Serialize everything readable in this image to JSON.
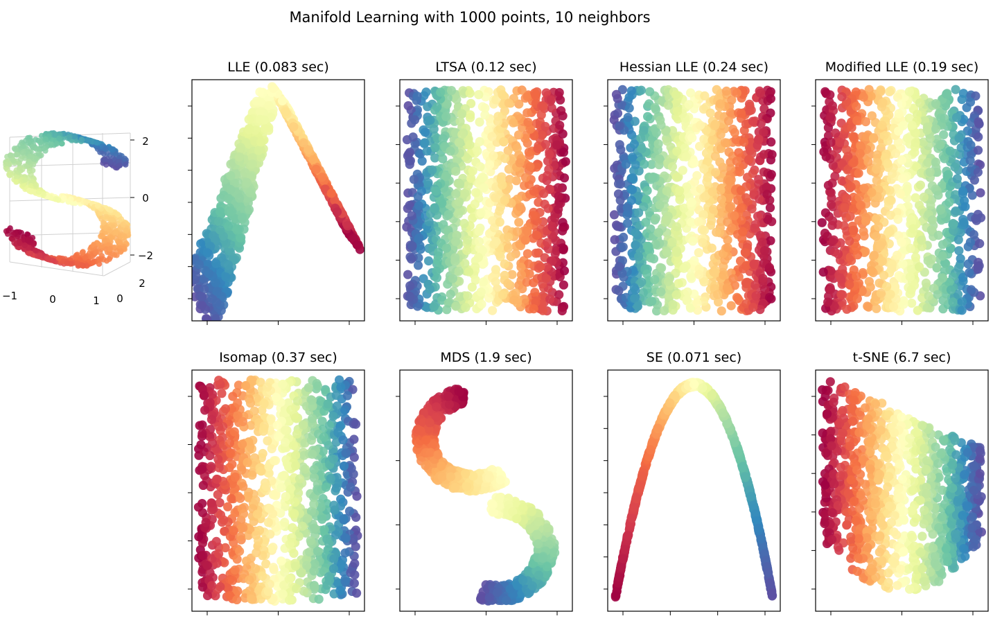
{
  "figure": {
    "title": "Manifold Learning with 1000 points, 10 neighbors"
  },
  "colormap": {
    "name": "Spectral",
    "stops": [
      "#9e0142",
      "#d53e4f",
      "#f46d43",
      "#fdae61",
      "#fee08b",
      "#ffffbf",
      "#e6f598",
      "#abdda4",
      "#66c2a5",
      "#3288bd",
      "#5e4fa2"
    ]
  },
  "chart_data": [
    {
      "type": "scatter",
      "panel": "s-curve-3d",
      "title": "",
      "shape": "3D S-curve",
      "n_points": 1000,
      "xticks": [
        "−1",
        "0",
        "1"
      ],
      "yticks": [
        "0",
        "2"
      ],
      "zticks": [
        "2",
        "0",
        "−2"
      ],
      "xlim": [
        -1,
        1
      ],
      "ylim": [
        0,
        2
      ],
      "zlim": [
        -2,
        2
      ]
    },
    {
      "type": "scatter",
      "method": "LLE",
      "title": "LLE (0.083 sec)",
      "shape": "inverted V / wedge",
      "xticks": 3,
      "yticks": 7,
      "ticklabels": false
    },
    {
      "type": "scatter",
      "method": "LTSA",
      "title": "LTSA (0.12 sec)",
      "shape": "filled rectangle, color gradient blue→red left to right",
      "xticks": 3,
      "yticks": 6,
      "ticklabels": false
    },
    {
      "type": "scatter",
      "method": "Hessian LLE",
      "title": "Hessian LLE (0.24 sec)",
      "shape": "filled rectangle, color gradient blue→red left to right",
      "xticks": 3,
      "yticks": 6,
      "ticklabels": false
    },
    {
      "type": "scatter",
      "method": "Modified LLE",
      "title": "Modified LLE (0.19 sec)",
      "shape": "filled rectangle, color gradient red→blue left to right",
      "xticks": 3,
      "yticks": 6,
      "ticklabels": false
    },
    {
      "type": "scatter",
      "method": "Isomap",
      "title": "Isomap (0.37 sec)",
      "shape": "filled rectangle, color gradient red→blue left to right",
      "xticks": 3,
      "yticks": 5,
      "ticklabels": false
    },
    {
      "type": "scatter",
      "method": "MDS",
      "title": "MDS (1.9 sec)",
      "shape": "two curved arcs (S-curve flattened)",
      "xticks": 3,
      "yticks": 4,
      "ticklabels": false
    },
    {
      "type": "scatter",
      "method": "SE",
      "title": "SE (0.071 sec)",
      "shape": "thin inverted parabola",
      "xticks": 4,
      "yticks": 7,
      "ticklabels": false
    },
    {
      "type": "scatter",
      "method": "t-SNE",
      "title": "t-SNE (6.7 sec)",
      "shape": "folded sheet, color gradient red→blue left to right",
      "xticks": 3,
      "yticks": 6,
      "ticklabels": false
    }
  ]
}
